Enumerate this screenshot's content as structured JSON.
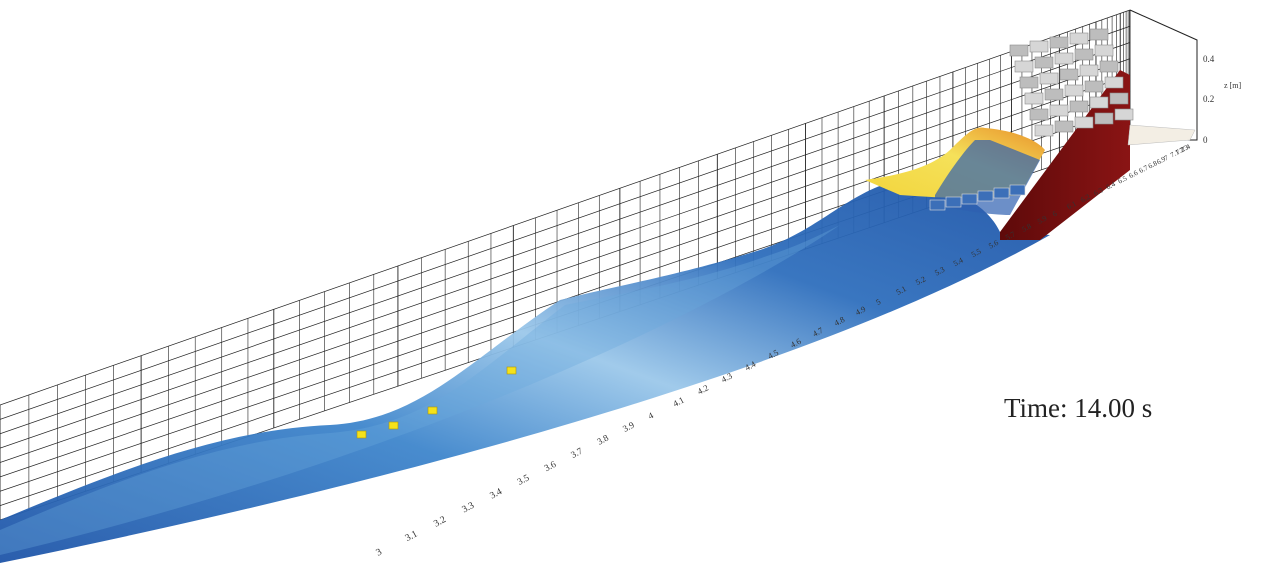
{
  "time_readout": {
    "label": "Time:",
    "value": "14.00",
    "unit": "s"
  },
  "z_axis": {
    "label": "z [m]",
    "ticks": [
      "0",
      "0.2",
      "0.4"
    ]
  },
  "x_axis": {
    "ticks": [
      "3",
      "3.1",
      "3.2",
      "3.3",
      "3.4",
      "3.5",
      "3.6",
      "3.7",
      "3.8",
      "3.9",
      "4",
      "4.1",
      "4.2",
      "4.3",
      "4.4",
      "4.5",
      "4.6",
      "4.7",
      "4.8",
      "4.9",
      "5",
      "5.1",
      "5.2",
      "5.3",
      "5.4",
      "5.5",
      "5.6",
      "5.7",
      "5.8",
      "5.9",
      "6",
      "6.1",
      "6.2",
      "6.3",
      "6.4",
      "6.5",
      "6.6",
      "6.7",
      "6.8",
      "6.9",
      "7",
      "7.1",
      "7.2",
      "7.3",
      "7.4"
    ]
  },
  "colors": {
    "water_deep": "#1f55a8",
    "water_mid": "#3f86cc",
    "water_light": "#9cc8ea",
    "runup_yellow": "#f2d53c",
    "runup_orange": "#e8902a",
    "slope": "#7a0f0f",
    "armor_blocks": "#c9c9c9",
    "grid": "#222222",
    "markers": "#f5e21a"
  }
}
